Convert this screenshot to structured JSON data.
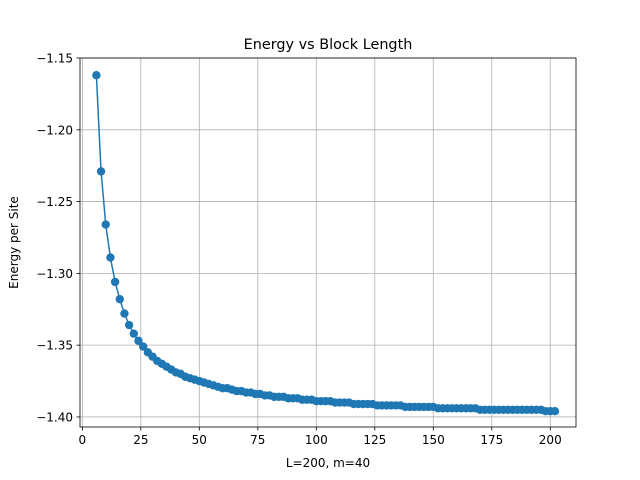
{
  "chart_data": {
    "type": "line",
    "title": "Energy vs Block Length",
    "xlabel": "L=200, m=40",
    "ylabel": "Energy per Site",
    "xlim": [
      -1,
      211
    ],
    "ylim": [
      -1.407,
      -1.15
    ],
    "xticks": [
      0,
      25,
      50,
      75,
      100,
      125,
      150,
      175,
      200
    ],
    "yticks": [
      -1.15,
      -1.2,
      -1.25,
      -1.3,
      -1.35,
      -1.4
    ],
    "xtick_labels": [
      "0",
      "25",
      "50",
      "75",
      "100",
      "125",
      "150",
      "175",
      "200"
    ],
    "ytick_labels": [
      "−1.15",
      "−1.20",
      "−1.25",
      "−1.30",
      "−1.35",
      "−1.40"
    ],
    "grid": true,
    "series": [
      {
        "color": "#1f77b4",
        "marker": "circle",
        "x": [
          6,
          8,
          10,
          12,
          14,
          16,
          18,
          20,
          22,
          24,
          26,
          28,
          30,
          32,
          34,
          36,
          38,
          40,
          42,
          44,
          46,
          48,
          50,
          52,
          54,
          56,
          58,
          60,
          62,
          64,
          66,
          68,
          70,
          72,
          74,
          76,
          78,
          80,
          82,
          84,
          86,
          88,
          90,
          92,
          94,
          96,
          98,
          100,
          102,
          104,
          106,
          108,
          110,
          112,
          114,
          116,
          118,
          120,
          122,
          124,
          126,
          128,
          130,
          132,
          134,
          136,
          138,
          140,
          142,
          144,
          146,
          148,
          150,
          152,
          154,
          156,
          158,
          160,
          162,
          164,
          166,
          168,
          170,
          172,
          174,
          176,
          178,
          180,
          182,
          184,
          186,
          188,
          190,
          192,
          194,
          196,
          198,
          200,
          202
        ],
        "y": [
          -1.162,
          -1.229,
          -1.266,
          -1.289,
          -1.306,
          -1.318,
          -1.328,
          -1.336,
          -1.342,
          -1.347,
          -1.351,
          -1.355,
          -1.358,
          -1.361,
          -1.363,
          -1.365,
          -1.367,
          -1.369,
          -1.37,
          -1.372,
          -1.373,
          -1.374,
          -1.375,
          -1.376,
          -1.377,
          -1.378,
          -1.379,
          -1.38,
          -1.38,
          -1.381,
          -1.382,
          -1.382,
          -1.383,
          -1.383,
          -1.384,
          -1.384,
          -1.385,
          -1.385,
          -1.386,
          -1.386,
          -1.386,
          -1.387,
          -1.387,
          -1.387,
          -1.388,
          -1.388,
          -1.388,
          -1.389,
          -1.389,
          -1.389,
          -1.389,
          -1.39,
          -1.39,
          -1.39,
          -1.39,
          -1.391,
          -1.391,
          -1.391,
          -1.391,
          -1.391,
          -1.392,
          -1.392,
          -1.392,
          -1.392,
          -1.392,
          -1.392,
          -1.393,
          -1.393,
          -1.393,
          -1.393,
          -1.393,
          -1.393,
          -1.393,
          -1.394,
          -1.394,
          -1.394,
          -1.394,
          -1.394,
          -1.394,
          -1.394,
          -1.394,
          -1.394,
          -1.395,
          -1.395,
          -1.395,
          -1.395,
          -1.395,
          -1.395,
          -1.395,
          -1.395,
          -1.395,
          -1.395,
          -1.395,
          -1.395,
          -1.395,
          -1.395,
          -1.396,
          -1.396,
          -1.396
        ]
      }
    ]
  }
}
